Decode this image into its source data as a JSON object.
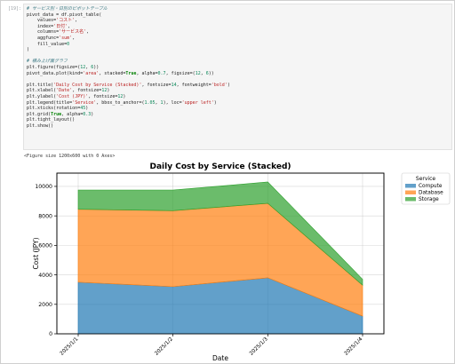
{
  "notebook": {
    "cell_prompt": "[19]:",
    "code_lines": [
      "# サービス別・日別のピボットテーブル",
      "pivot_data = df.pivot_table(",
      "    values='コスト',",
      "    index='日付',",
      "    columns='サービス名',",
      "    aggfunc='sum',",
      "    fill_value=0",
      ")",
      "",
      "# 積み上げ面グラフ",
      "plt.figure(figsize=(12, 6))",
      "pivot_data.plot(kind='area', stacked=True, alpha=0.7, figsize=(12, 6))",
      "",
      "plt.title('Daily Cost by Service (Stacked)', fontsize=14, fontweight='bold')",
      "plt.xlabel('Date', fontsize=12)",
      "plt.ylabel('Cost (JPY)', fontsize=12)",
      "plt.legend(title='Service', bbox_to_anchor=(1.05, 1), loc='upper left')",
      "plt.xticks(rotation=45)",
      "plt.grid(True, alpha=0.3)",
      "plt.tight_layout()",
      "plt.show()"
    ],
    "output_text": "<Figure size 1200x600 with 0 Axes>"
  },
  "chart_data": {
    "type": "area",
    "stacked": true,
    "title": "Daily Cost by Service (Stacked)",
    "xlabel": "Date",
    "ylabel": "Cost (JPY)",
    "categories": [
      "2025/1/1",
      "2025/1/2",
      "2025/1/3",
      "2025/1/4"
    ],
    "ylim": [
      0,
      10900
    ],
    "yticks": [
      0,
      2000,
      4000,
      6000,
      8000,
      10000
    ],
    "grid": true,
    "legend_title": "Service",
    "legend_placement": "outside upper-right",
    "series": [
      {
        "name": "Compute",
        "color": "#1f77b4",
        "values": [
          3500,
          3200,
          3800,
          1200
        ]
      },
      {
        "name": "Database",
        "color": "#ff7f0e",
        "values": [
          4950,
          5150,
          5050,
          2100
        ]
      },
      {
        "name": "Storage",
        "color": "#2ca02c",
        "values": [
          1300,
          1400,
          1450,
          400
        ]
      }
    ]
  }
}
